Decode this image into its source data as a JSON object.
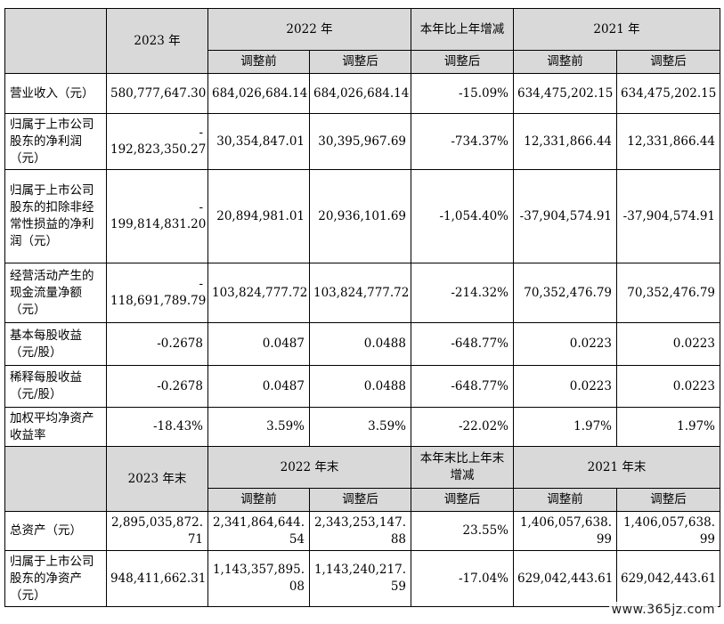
{
  "header1": {
    "year_2023": "2023 年",
    "year_2022": "2022 年",
    "change": "本年比上年增减",
    "year_2021": "2021 年",
    "before": "调整前",
    "after": "调整后",
    "after_change": "调整后"
  },
  "rows1": [
    {
      "label": "营业收入（元）",
      "v2023": [
        "580,777,647.30"
      ],
      "v2022b": "684,026,684.14",
      "v2022a": "684,026,684.14",
      "chg": "-15.09%",
      "v2021b": "634,475,202.15",
      "v2021a": "634,475,202.15"
    },
    {
      "label": "归属于上市公司股东的净利润（元）",
      "v2023": [
        "-",
        "192,823,350.27"
      ],
      "v2022b": "30,354,847.01",
      "v2022a": "30,395,967.69",
      "chg": "-734.37%",
      "v2021b": "12,331,866.44",
      "v2021a": "12,331,866.44"
    },
    {
      "label": "归属于上市公司股东的扣除非经常性损益的净利润（元）",
      "v2023": [
        "-",
        "199,814,831.20"
      ],
      "v2022b": "20,894,981.01",
      "v2022a": "20,936,101.69",
      "chg": "-1,054.40%",
      "v2021b": "-37,904,574.91",
      "v2021a": "-37,904,574.91"
    },
    {
      "label": "经营活动产生的现金流量净额（元）",
      "v2023": [
        "-",
        "118,691,789.79"
      ],
      "v2022b": "103,824,777.72",
      "v2022a": "103,824,777.72",
      "chg": "-214.32%",
      "v2021b": "70,352,476.79",
      "v2021a": "70,352,476.79"
    },
    {
      "label": "基本每股收益（元/股）",
      "v2023": [
        "-0.2678"
      ],
      "v2022b": "0.0487",
      "v2022a": "0.0488",
      "chg": "-648.77%",
      "v2021b": "0.0223",
      "v2021a": "0.0223"
    },
    {
      "label": "稀释每股收益（元/股）",
      "v2023": [
        "-0.2678"
      ],
      "v2022b": "0.0487",
      "v2022a": "0.0488",
      "chg": "-648.77%",
      "v2021b": "0.0223",
      "v2021a": "0.0223"
    },
    {
      "label": "加权平均净资产收益率",
      "v2023": [
        "-18.43%"
      ],
      "v2022b": "3.59%",
      "v2022a": "3.59%",
      "chg": "-22.02%",
      "v2021b": "1.97%",
      "v2021a": "1.97%"
    }
  ],
  "header2": {
    "year_2023": "2023 年末",
    "year_2022": "2022 年末",
    "change": "本年末比上年末增减",
    "year_2021": "2021 年末",
    "before": "调整前",
    "after": "调整后",
    "after_change": "调整后"
  },
  "rows2": [
    {
      "label": "总资产（元）",
      "v2023": [
        "2,895,035,872.",
        "71"
      ],
      "v2022b": [
        "2,341,864,644.",
        "54"
      ],
      "v2022a": [
        "2,343,253,147.",
        "88"
      ],
      "chg": "23.55%",
      "v2021b": [
        "1,406,057,638.",
        "99"
      ],
      "v2021a": [
        "1,406,057,638.",
        "99"
      ]
    },
    {
      "label": "归属于上市公司股东的净资产（元）",
      "v2023": [
        "948,411,662.31"
      ],
      "v2022b": [
        "1,143,357,895.",
        "08"
      ],
      "v2022a": [
        "1,143,240,217.",
        "59"
      ],
      "chg": "-17.04%",
      "v2021b": [
        "629,042,443.61"
      ],
      "v2021a": [
        "629,042,443.61"
      ]
    }
  ],
  "watermark": "www.365jz.com"
}
